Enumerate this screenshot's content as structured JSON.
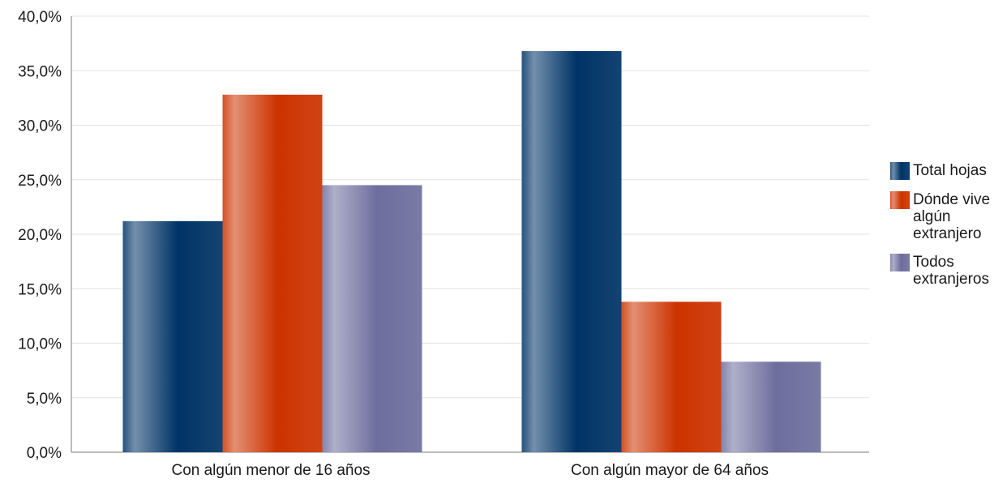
{
  "chart_data": {
    "type": "bar",
    "title": "",
    "xlabel": "",
    "ylabel": "",
    "categories": [
      "Con algún menor de 16 años",
      "Con algún mayor de 64 años"
    ],
    "series": [
      {
        "name": "Total hojas",
        "values": [
          21.2,
          36.8
        ],
        "color": "#003366"
      },
      {
        "name": "Dónde vive algún extranjero",
        "values": [
          32.8,
          13.8
        ],
        "color": "#cc3300"
      },
      {
        "name": "Todos extranjeros",
        "values": [
          24.5,
          8.3
        ],
        "color": "#6e6e9e"
      }
    ],
    "ylim": [
      0,
      40
    ],
    "yticks": [
      "0,0%",
      "5,0%",
      "10,0%",
      "15,0%",
      "20,0%",
      "25,0%",
      "30,0%",
      "35,0%",
      "40,0%"
    ],
    "grid": true,
    "legend_position": "right"
  }
}
